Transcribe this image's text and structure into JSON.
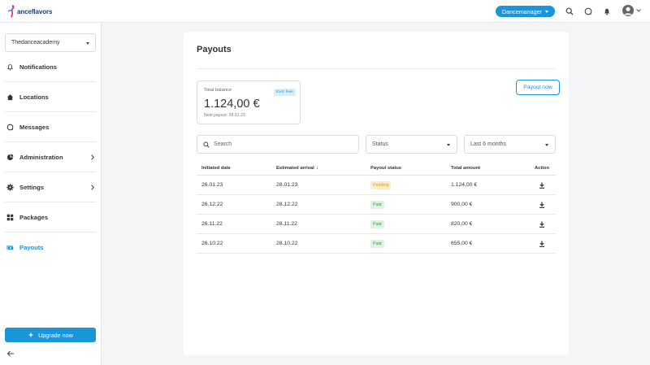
{
  "brand": {
    "logo_text": "anceflavors"
  },
  "header": {
    "role_label": "Dancemanager",
    "icons": [
      "search-icon",
      "chat-icon",
      "bell-icon",
      "avatar-icon"
    ]
  },
  "sidebar": {
    "academy": "Thedanceacademy",
    "items": [
      {
        "label": "Notifications",
        "icon": "bell-icon"
      },
      {
        "label": "Locations",
        "icon": "home-icon"
      },
      {
        "label": "Messages",
        "icon": "chat-icon"
      },
      {
        "label": "Administration",
        "icon": "pie-icon"
      },
      {
        "label": "Settings",
        "icon": "gear-icon"
      },
      {
        "label": "Packages",
        "icon": "grid-icon"
      },
      {
        "label": "Payouts",
        "icon": "cash-icon"
      }
    ],
    "upgrade_label": "Upgrade now"
  },
  "main": {
    "title": "Payouts",
    "balance": {
      "label": "Total balance",
      "badge": "Excl. fees",
      "amount": "1.124,00 €",
      "next_payout": "Next payout: 28.01.23"
    },
    "payout_button": "Payout now",
    "search_placeholder": "Search",
    "status_filter": "Status",
    "period_filter": "Last 6 months",
    "table": {
      "headers": {
        "initiated": "Initiated date",
        "arrival": "Estimated arrival",
        "status": "Payout status",
        "amount": "Total amount",
        "action": "Action"
      },
      "rows": [
        {
          "initiated": "26.01.23",
          "arrival": "28.01.23",
          "status": "Pending",
          "amount": "1.124,00 €"
        },
        {
          "initiated": "26.12.22",
          "arrival": "28.12.22",
          "status": "Paid",
          "amount": "900,00 €"
        },
        {
          "initiated": "26.11.22",
          "arrival": "28.11.22",
          "status": "Paid",
          "amount": "820,00 €"
        },
        {
          "initiated": "26.10.22",
          "arrival": "28.10.22",
          "status": "Paid",
          "amount": "655,00 €"
        }
      ]
    }
  },
  "colors": {
    "accent": "#1a95d8",
    "pending": "#d99c1c",
    "paid": "#3f9a52"
  }
}
